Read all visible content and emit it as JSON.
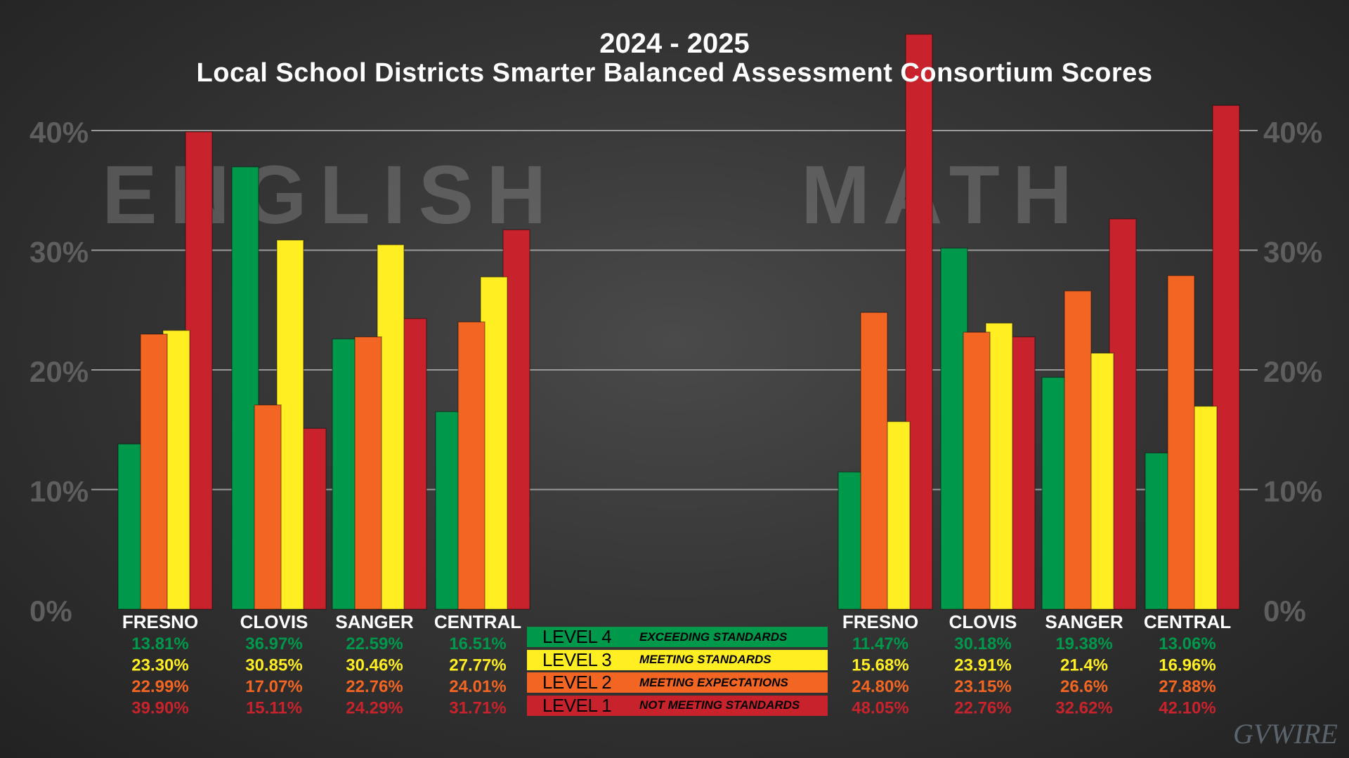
{
  "header": {
    "year": "2024 - 2025",
    "title": "Local School Districts Smarter Balanced Assessment Consortium Scores"
  },
  "chart_data": {
    "type": "bar",
    "ylim": [
      0,
      40
    ],
    "yticks": [
      "0%",
      "10%",
      "20%",
      "30%",
      "40%"
    ],
    "grid": true,
    "colors": {
      "level4": "#00994c",
      "level3": "#ffee22",
      "level2": "#f26522",
      "level1": "#c8232c"
    },
    "panels": [
      {
        "subject": "ENGLISH",
        "districts": [
          {
            "name": "FRESNO",
            "level4": 13.81,
            "level3": 23.3,
            "level2": 22.99,
            "level1": 39.9,
            "labels": [
              "13.81%",
              "23.30%",
              "22.99%",
              "39.90%"
            ]
          },
          {
            "name": "CLOVIS",
            "level4": 36.97,
            "level3": 30.85,
            "level2": 17.07,
            "level1": 15.11,
            "labels": [
              "36.97%",
              "30.85%",
              "17.07%",
              "15.11%"
            ]
          },
          {
            "name": "SANGER",
            "level4": 22.59,
            "level3": 30.46,
            "level2": 22.76,
            "level1": 24.29,
            "labels": [
              "22.59%",
              "30.46%",
              "22.76%",
              "24.29%"
            ]
          },
          {
            "name": "CENTRAL",
            "level4": 16.51,
            "level3": 27.77,
            "level2": 24.01,
            "level1": 31.71,
            "labels": [
              "16.51%",
              "27.77%",
              "24.01%",
              "31.71%"
            ]
          }
        ]
      },
      {
        "subject": "MATH",
        "districts": [
          {
            "name": "FRESNO",
            "level4": 11.47,
            "level3": 15.68,
            "level2": 24.8,
            "level1": 48.05,
            "labels": [
              "11.47%",
              "15.68%",
              "24.80%",
              "48.05%"
            ]
          },
          {
            "name": "CLOVIS",
            "level4": 30.18,
            "level3": 23.91,
            "level2": 23.15,
            "level1": 22.76,
            "labels": [
              "30.18%",
              "23.91%",
              "23.15%",
              "22.76%"
            ]
          },
          {
            "name": "SANGER",
            "level4": 19.38,
            "level3": 21.4,
            "level2": 26.6,
            "level1": 32.62,
            "labels": [
              "19.38%",
              "21.4%",
              "26.6%",
              "32.62%"
            ]
          },
          {
            "name": "CENTRAL",
            "level4": 13.06,
            "level3": 16.96,
            "level2": 27.88,
            "level1": 42.1,
            "labels": [
              "13.06%",
              "16.96%",
              "27.88%",
              "42.10%"
            ]
          }
        ]
      }
    ],
    "legend": [
      {
        "level": "LEVEL 4",
        "desc": "EXCEEDING STANDARDS",
        "bg": "#00994c",
        "fg": "#000000"
      },
      {
        "level": "LEVEL 3",
        "desc": "MEETING STANDARDS",
        "bg": "#ffee22",
        "fg": "#000000"
      },
      {
        "level": "LEVEL 2",
        "desc": "MEETING EXPECTATIONS",
        "bg": "#f26522",
        "fg": "#000000"
      },
      {
        "level": "LEVEL 1",
        "desc": "NOT MEETING STANDARDS",
        "bg": "#c8232c",
        "fg": "#000000"
      }
    ]
  },
  "watermark": "GVWIRE"
}
